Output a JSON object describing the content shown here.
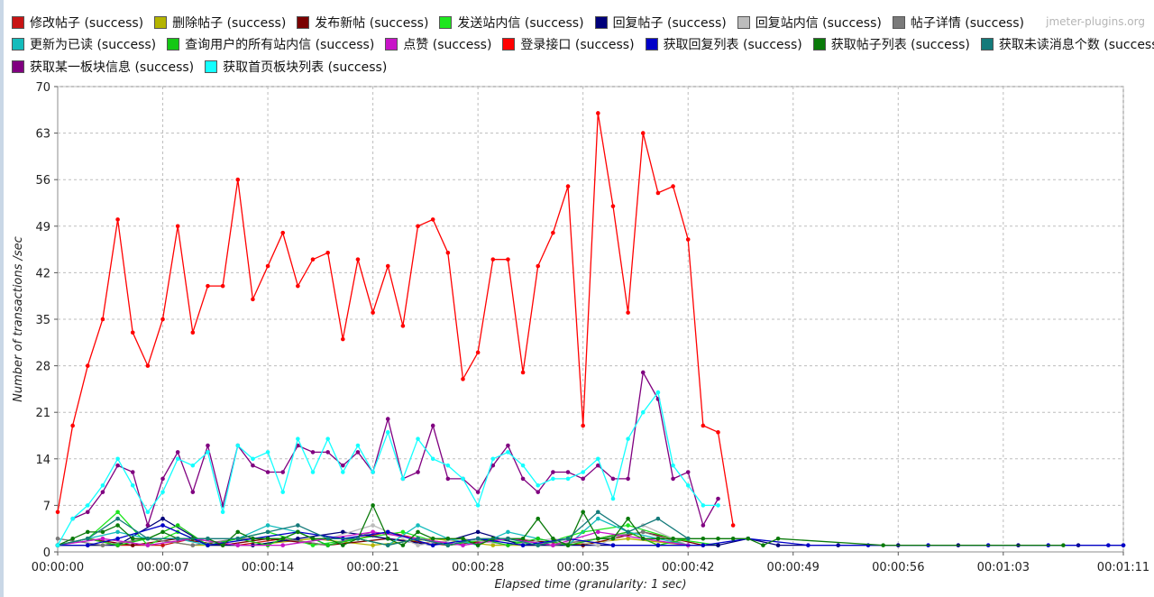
{
  "watermark": "jmeter-plugins.org",
  "chart_data": {
    "type": "line",
    "xlabel": "Elapsed time (granularity: 1 sec)",
    "ylabel": "Number of transactions /sec",
    "ylim": [
      0,
      70
    ],
    "yticks": [
      0,
      7,
      14,
      21,
      28,
      35,
      42,
      49,
      56,
      63,
      70
    ],
    "xlim": [
      0,
      71
    ],
    "xticks": [
      0,
      7,
      14,
      21,
      28,
      35,
      42,
      49,
      56,
      63,
      71
    ],
    "xtick_labels": [
      "00:00:00",
      "00:00:07",
      "00:00:14",
      "00:00:21",
      "00:00:28",
      "00:00:35",
      "00:00:42",
      "00:00:49",
      "00:00:56",
      "00:01:03",
      "00:01:11"
    ],
    "grid": true,
    "legend_position": "top",
    "series": [
      {
        "name": "修改帖子 (success)",
        "color": "#c81414",
        "x": [
          0,
          2,
          4,
          7,
          9,
          12,
          15,
          18,
          22,
          26,
          30,
          33,
          36,
          38,
          40
        ],
        "y": [
          1,
          2,
          1,
          1,
          2,
          1,
          2,
          1,
          3,
          1,
          2,
          1,
          2,
          3,
          1
        ]
      },
      {
        "name": "删除帖子 (success)",
        "color": "#b4b400",
        "x": [
          0,
          3,
          6,
          9,
          13,
          17,
          21,
          25,
          29,
          34,
          38,
          42
        ],
        "y": [
          1,
          1,
          2,
          1,
          1,
          2,
          1,
          2,
          1,
          1,
          2,
          1
        ]
      },
      {
        "name": "发布新帖 (success)",
        "color": "#7a0000",
        "x": [
          0,
          2,
          5,
          8,
          11,
          14,
          18,
          22,
          26,
          30,
          35,
          39,
          43
        ],
        "y": [
          1,
          2,
          1,
          2,
          1,
          2,
          1,
          2,
          1,
          2,
          1,
          3,
          1
        ]
      },
      {
        "name": "发送站内信 (success)",
        "color": "#1ee61e",
        "x": [
          0,
          2,
          4,
          6,
          8,
          10,
          12,
          14,
          17,
          20,
          23,
          26,
          29,
          32,
          35,
          38,
          41,
          44
        ],
        "y": [
          1,
          2,
          6,
          1,
          3,
          1,
          2,
          3,
          1,
          2,
          3,
          1,
          2,
          1,
          3,
          4,
          2,
          1
        ]
      },
      {
        "name": "回复帖子 (success)",
        "color": "#00007a",
        "x": [
          0,
          2,
          4,
          7,
          10,
          13,
          16,
          19,
          22,
          25,
          28,
          31,
          34,
          37,
          40,
          42,
          44,
          46,
          48,
          52,
          56,
          60,
          64,
          68,
          71
        ],
        "y": [
          1,
          1,
          1,
          5,
          1,
          1,
          2,
          3,
          2,
          1,
          3,
          1,
          1,
          1,
          1,
          1,
          1,
          2,
          1,
          1,
          1,
          1,
          1,
          1,
          1
        ]
      },
      {
        "name": "回复站内信 (success)",
        "color": "#bcbcbc",
        "x": [
          0,
          3,
          6,
          9,
          12,
          15,
          18,
          21,
          24,
          27,
          30,
          33,
          36,
          39,
          42
        ],
        "y": [
          1,
          2,
          1,
          2,
          1,
          1,
          2,
          4,
          1,
          2,
          1,
          2,
          1,
          4,
          1
        ]
      },
      {
        "name": "帖子详情 (success)",
        "color": "#7a7a7a",
        "x": [
          0,
          3,
          6,
          9,
          12,
          15,
          18,
          21,
          24,
          27,
          30,
          33,
          36,
          39,
          42
        ],
        "y": [
          2,
          1,
          2,
          1,
          2,
          2,
          1,
          3,
          2,
          1,
          2,
          1,
          2,
          3,
          1
        ]
      },
      {
        "name": "更新为已读 (success)",
        "color": "#14bcbc",
        "x": [
          0,
          2,
          4,
          6,
          8,
          10,
          12,
          14,
          16,
          18,
          20,
          22,
          24,
          26,
          28,
          30,
          32,
          34,
          36,
          38,
          40,
          42
        ],
        "y": [
          1,
          2,
          3,
          2,
          2,
          1,
          2,
          4,
          3,
          1,
          2,
          1,
          4,
          2,
          1,
          3,
          2,
          1,
          5,
          3,
          2,
          1
        ]
      },
      {
        "name": "查询用户的所有站内信 (success)",
        "color": "#14c814",
        "x": [
          0,
          2,
          4,
          6,
          8,
          10,
          12,
          14,
          16,
          18,
          20,
          22,
          24,
          26,
          28,
          30,
          32,
          34,
          36,
          38,
          40,
          42
        ],
        "y": [
          1,
          2,
          1,
          2,
          4,
          1,
          2,
          1,
          3,
          1,
          2,
          1,
          2,
          1,
          2,
          1,
          2,
          1,
          2,
          3,
          1,
          2
        ]
      },
      {
        "name": "点赞 (success)",
        "color": "#c814c8",
        "x": [
          0,
          3,
          6,
          9,
          12,
          15,
          18,
          21,
          24,
          27,
          30,
          33,
          36,
          39,
          42
        ],
        "y": [
          1,
          2,
          1,
          2,
          1,
          1,
          2,
          3,
          2,
          1,
          2,
          1,
          3,
          2,
          1
        ]
      },
      {
        "name": "登录接口 (success)",
        "color": "#ff0000",
        "x": [
          0,
          1,
          2,
          3,
          4,
          5,
          6,
          7,
          8,
          9,
          10,
          11,
          12,
          13,
          14,
          15,
          16,
          17,
          18,
          19,
          20,
          21,
          22,
          23,
          24,
          25,
          26,
          27,
          28,
          29,
          30,
          31,
          32,
          33,
          34,
          35,
          36,
          37,
          38,
          39,
          40,
          41,
          42,
          43,
          44,
          45
        ],
        "y": [
          6,
          19,
          28,
          35,
          50,
          33,
          28,
          35,
          49,
          33,
          40,
          40,
          56,
          38,
          43,
          48,
          40,
          44,
          45,
          32,
          44,
          36,
          43,
          34,
          49,
          50,
          45,
          26,
          30,
          44,
          44,
          27,
          43,
          48,
          55,
          19,
          66,
          52,
          36,
          63,
          54,
          55,
          47,
          19,
          18,
          4
        ]
      },
      {
        "name": "获取回复列表 (success)",
        "color": "#0000c8",
        "x": [
          0,
          2,
          4,
          7,
          10,
          13,
          16,
          19,
          22,
          25,
          28,
          31,
          34,
          37,
          40,
          43,
          46,
          50,
          54,
          58,
          62,
          66,
          70,
          71
        ],
        "y": [
          1,
          1,
          2,
          4,
          1,
          2,
          3,
          2,
          3,
          1,
          2,
          1,
          2,
          1,
          1,
          1,
          2,
          1,
          1,
          1,
          1,
          1,
          1,
          1
        ]
      },
      {
        "name": "获取帖子列表 (success)",
        "color": "#0a7a0a",
        "x": [
          0,
          1,
          2,
          3,
          4,
          5,
          6,
          7,
          8,
          9,
          10,
          11,
          12,
          13,
          14,
          15,
          16,
          17,
          18,
          19,
          20,
          21,
          22,
          23,
          24,
          25,
          26,
          27,
          28,
          29,
          30,
          31,
          32,
          33,
          34,
          35,
          36,
          37,
          38,
          39,
          40,
          41,
          42,
          43,
          44,
          45,
          46,
          47,
          48,
          55,
          67
        ],
        "y": [
          1,
          2,
          3,
          3,
          4,
          2,
          2,
          3,
          2,
          2,
          2,
          1,
          3,
          2,
          2,
          2,
          3,
          2,
          2,
          1,
          2,
          7,
          2,
          1,
          3,
          2,
          2,
          2,
          1,
          2,
          2,
          2,
          5,
          2,
          1,
          6,
          2,
          2,
          5,
          2,
          2,
          2,
          2,
          2,
          2,
          2,
          2,
          1,
          2,
          1,
          1
        ]
      },
      {
        "name": "获取未读消息个数 (success)",
        "color": "#147a7a",
        "x": [
          0,
          2,
          4,
          6,
          8,
          10,
          12,
          14,
          16,
          18,
          20,
          22,
          24,
          26,
          28,
          30,
          32,
          34,
          36,
          38,
          40,
          42
        ],
        "y": [
          1,
          2,
          5,
          2,
          2,
          2,
          2,
          3,
          4,
          2,
          2,
          1,
          2,
          1,
          2,
          2,
          1,
          2,
          6,
          3,
          5,
          2
        ]
      },
      {
        "name": "获取某一板块信息 (success)",
        "color": "#800080",
        "x": [
          1,
          2,
          3,
          4,
          5,
          6,
          7,
          8,
          9,
          10,
          11,
          12,
          13,
          14,
          15,
          16,
          17,
          18,
          19,
          20,
          21,
          22,
          23,
          24,
          25,
          26,
          27,
          28,
          29,
          30,
          31,
          32,
          33,
          34,
          35,
          36,
          37,
          38,
          39,
          40,
          41,
          42,
          43,
          44
        ],
        "y": [
          5,
          6,
          9,
          13,
          12,
          4,
          11,
          15,
          9,
          16,
          7,
          16,
          13,
          12,
          12,
          16,
          15,
          15,
          13,
          15,
          12,
          20,
          11,
          12,
          19,
          11,
          11,
          9,
          13,
          16,
          11,
          9,
          12,
          12,
          11,
          13,
          11,
          11,
          27,
          23,
          11,
          12,
          4,
          8
        ]
      },
      {
        "name": "获取首页板块列表 (success)",
        "color": "#14ffff",
        "x": [
          0,
          1,
          2,
          3,
          4,
          5,
          6,
          7,
          8,
          9,
          10,
          11,
          12,
          13,
          14,
          15,
          16,
          17,
          18,
          19,
          20,
          21,
          22,
          23,
          24,
          25,
          26,
          27,
          28,
          29,
          30,
          31,
          32,
          33,
          34,
          35,
          36,
          37,
          38,
          39,
          40,
          41,
          42,
          43,
          44
        ],
        "y": [
          1,
          5,
          7,
          10,
          14,
          10,
          6,
          9,
          14,
          13,
          15,
          6,
          16,
          14,
          15,
          9,
          17,
          12,
          17,
          12,
          16,
          12,
          18,
          11,
          17,
          14,
          13,
          11,
          7,
          14,
          15,
          13,
          10,
          11,
          11,
          12,
          14,
          8,
          17,
          21,
          24,
          13,
          10,
          7,
          7
        ]
      }
    ]
  }
}
